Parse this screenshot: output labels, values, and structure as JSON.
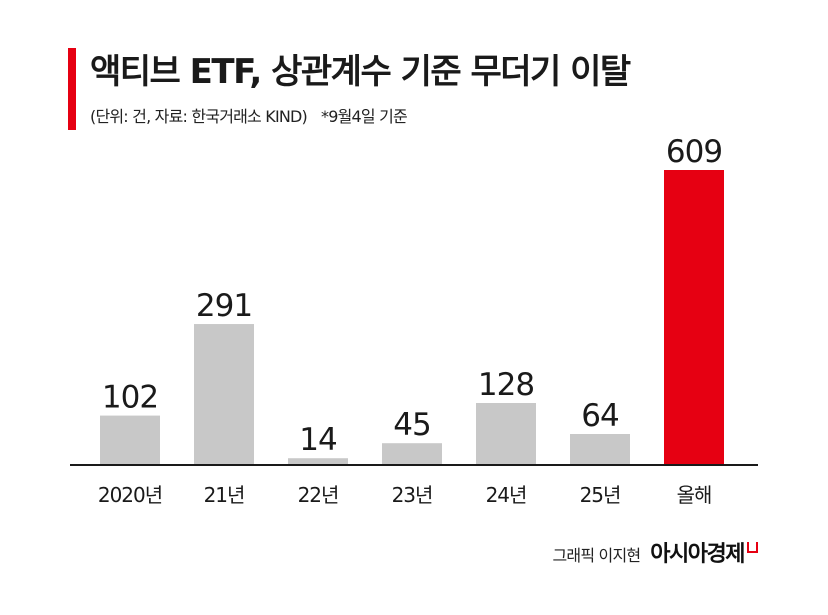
{
  "title": "액티브 ETF, 상관계수 기준 무더기 이탈",
  "subtitle": "(단위: 건, 자료: 한국거래소 KIND)",
  "note": "*9월4일 기준",
  "credit": {
    "author": "그래픽 이지현",
    "brand": "아시아경제"
  },
  "colors": {
    "accent": "#e60012",
    "bar": "#c8c8c8",
    "axis": "#1a1a1a"
  },
  "chart_data": {
    "type": "bar",
    "categories": [
      "2020년",
      "21년",
      "22년",
      "23년",
      "24년",
      "25년",
      "올해"
    ],
    "values": [
      102,
      291,
      14,
      45,
      128,
      64,
      609
    ],
    "highlight_index": 6,
    "ylim": [
      0,
      609
    ],
    "grid": false,
    "legend": "none"
  }
}
